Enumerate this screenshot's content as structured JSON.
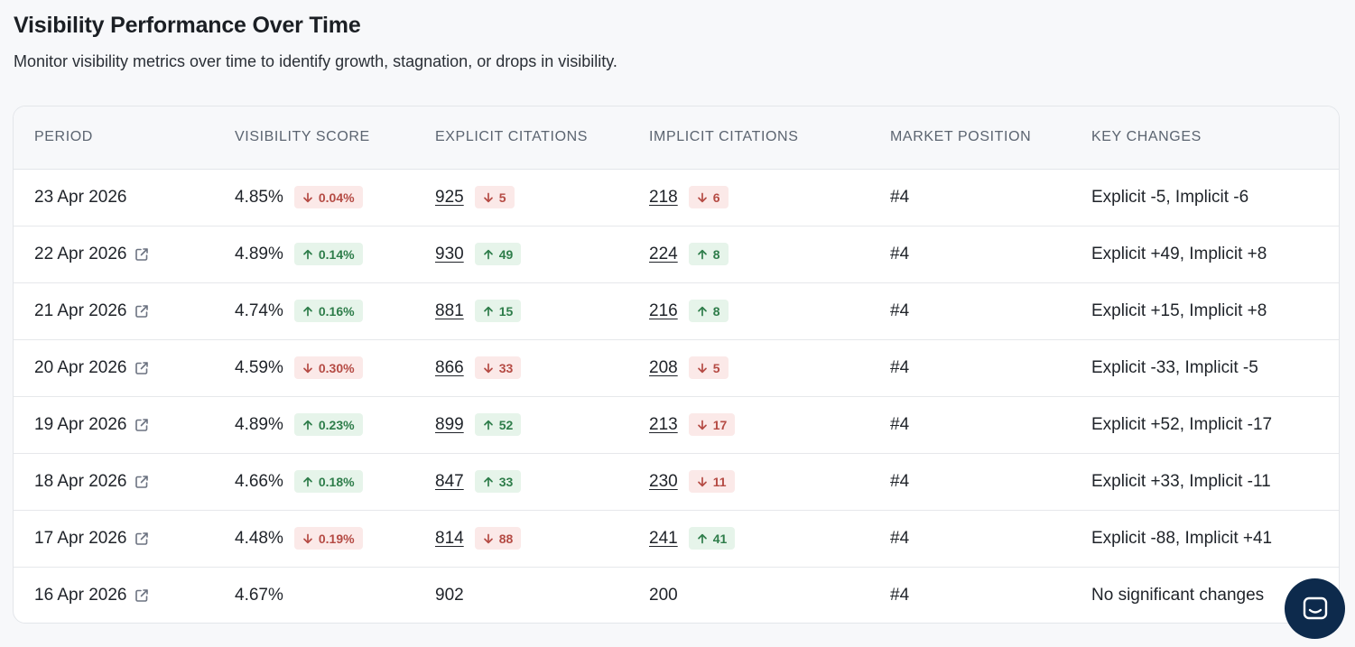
{
  "header": {
    "title": "Visibility Performance Over Time",
    "subtitle": "Monitor visibility metrics over time to identify growth, stagnation, or drops in visibility."
  },
  "table": {
    "columns": [
      "PERIOD",
      "VISIBILITY SCORE",
      "EXPLICIT CITATIONS",
      "IMPLICIT CITATIONS",
      "MARKET POSITION",
      "KEY CHANGES"
    ],
    "rows": [
      {
        "period": "23 Apr 2026",
        "external_link": false,
        "score": "4.85%",
        "score_change": "0.04%",
        "score_dir": "down",
        "explicit": "925",
        "explicit_change": "5",
        "explicit_dir": "down",
        "implicit": "218",
        "implicit_change": "6",
        "implicit_dir": "down",
        "position": "#4",
        "changes": "Explicit -5, Implicit -6"
      },
      {
        "period": "22 Apr 2026",
        "external_link": true,
        "score": "4.89%",
        "score_change": "0.14%",
        "score_dir": "up",
        "explicit": "930",
        "explicit_change": "49",
        "explicit_dir": "up",
        "implicit": "224",
        "implicit_change": "8",
        "implicit_dir": "up",
        "position": "#4",
        "changes": "Explicit +49, Implicit +8"
      },
      {
        "period": "21 Apr 2026",
        "external_link": true,
        "score": "4.74%",
        "score_change": "0.16%",
        "score_dir": "up",
        "explicit": "881",
        "explicit_change": "15",
        "explicit_dir": "up",
        "implicit": "216",
        "implicit_change": "8",
        "implicit_dir": "up",
        "position": "#4",
        "changes": "Explicit +15, Implicit +8"
      },
      {
        "period": "20 Apr 2026",
        "external_link": true,
        "score": "4.59%",
        "score_change": "0.30%",
        "score_dir": "down",
        "explicit": "866",
        "explicit_change": "33",
        "explicit_dir": "down",
        "implicit": "208",
        "implicit_change": "5",
        "implicit_dir": "down",
        "position": "#4",
        "changes": "Explicit -33, Implicit -5"
      },
      {
        "period": "19 Apr 2026",
        "external_link": true,
        "score": "4.89%",
        "score_change": "0.23%",
        "score_dir": "up",
        "explicit": "899",
        "explicit_change": "52",
        "explicit_dir": "up",
        "implicit": "213",
        "implicit_change": "17",
        "implicit_dir": "down",
        "position": "#4",
        "changes": "Explicit +52, Implicit -17"
      },
      {
        "period": "18 Apr 2026",
        "external_link": true,
        "score": "4.66%",
        "score_change": "0.18%",
        "score_dir": "up",
        "explicit": "847",
        "explicit_change": "33",
        "explicit_dir": "up",
        "implicit": "230",
        "implicit_change": "11",
        "implicit_dir": "down",
        "position": "#4",
        "changes": "Explicit +33, Implicit -11"
      },
      {
        "period": "17 Apr 2026",
        "external_link": true,
        "score": "4.48%",
        "score_change": "0.19%",
        "score_dir": "down",
        "explicit": "814",
        "explicit_change": "88",
        "explicit_dir": "down",
        "implicit": "241",
        "implicit_change": "41",
        "implicit_dir": "up",
        "position": "#4",
        "changes": "Explicit -88, Implicit +41"
      },
      {
        "period": "16 Apr 2026",
        "external_link": true,
        "score": "4.67%",
        "score_change": null,
        "score_dir": null,
        "explicit": "902",
        "explicit_change": null,
        "explicit_dir": null,
        "implicit": "200",
        "implicit_change": null,
        "implicit_dir": null,
        "position": "#4",
        "changes": "No significant changes"
      }
    ]
  },
  "colors": {
    "up_bg": "#e6f4ea",
    "up_text": "#2e7d4a",
    "down_bg": "#fbe9e8",
    "down_text": "#b54b44",
    "chat_button": "#0d2a4c"
  },
  "icons": {
    "external_link": "external-link-icon",
    "arrow_up": "arrow-up-icon",
    "arrow_down": "arrow-down-icon",
    "chat": "chat-icon"
  }
}
